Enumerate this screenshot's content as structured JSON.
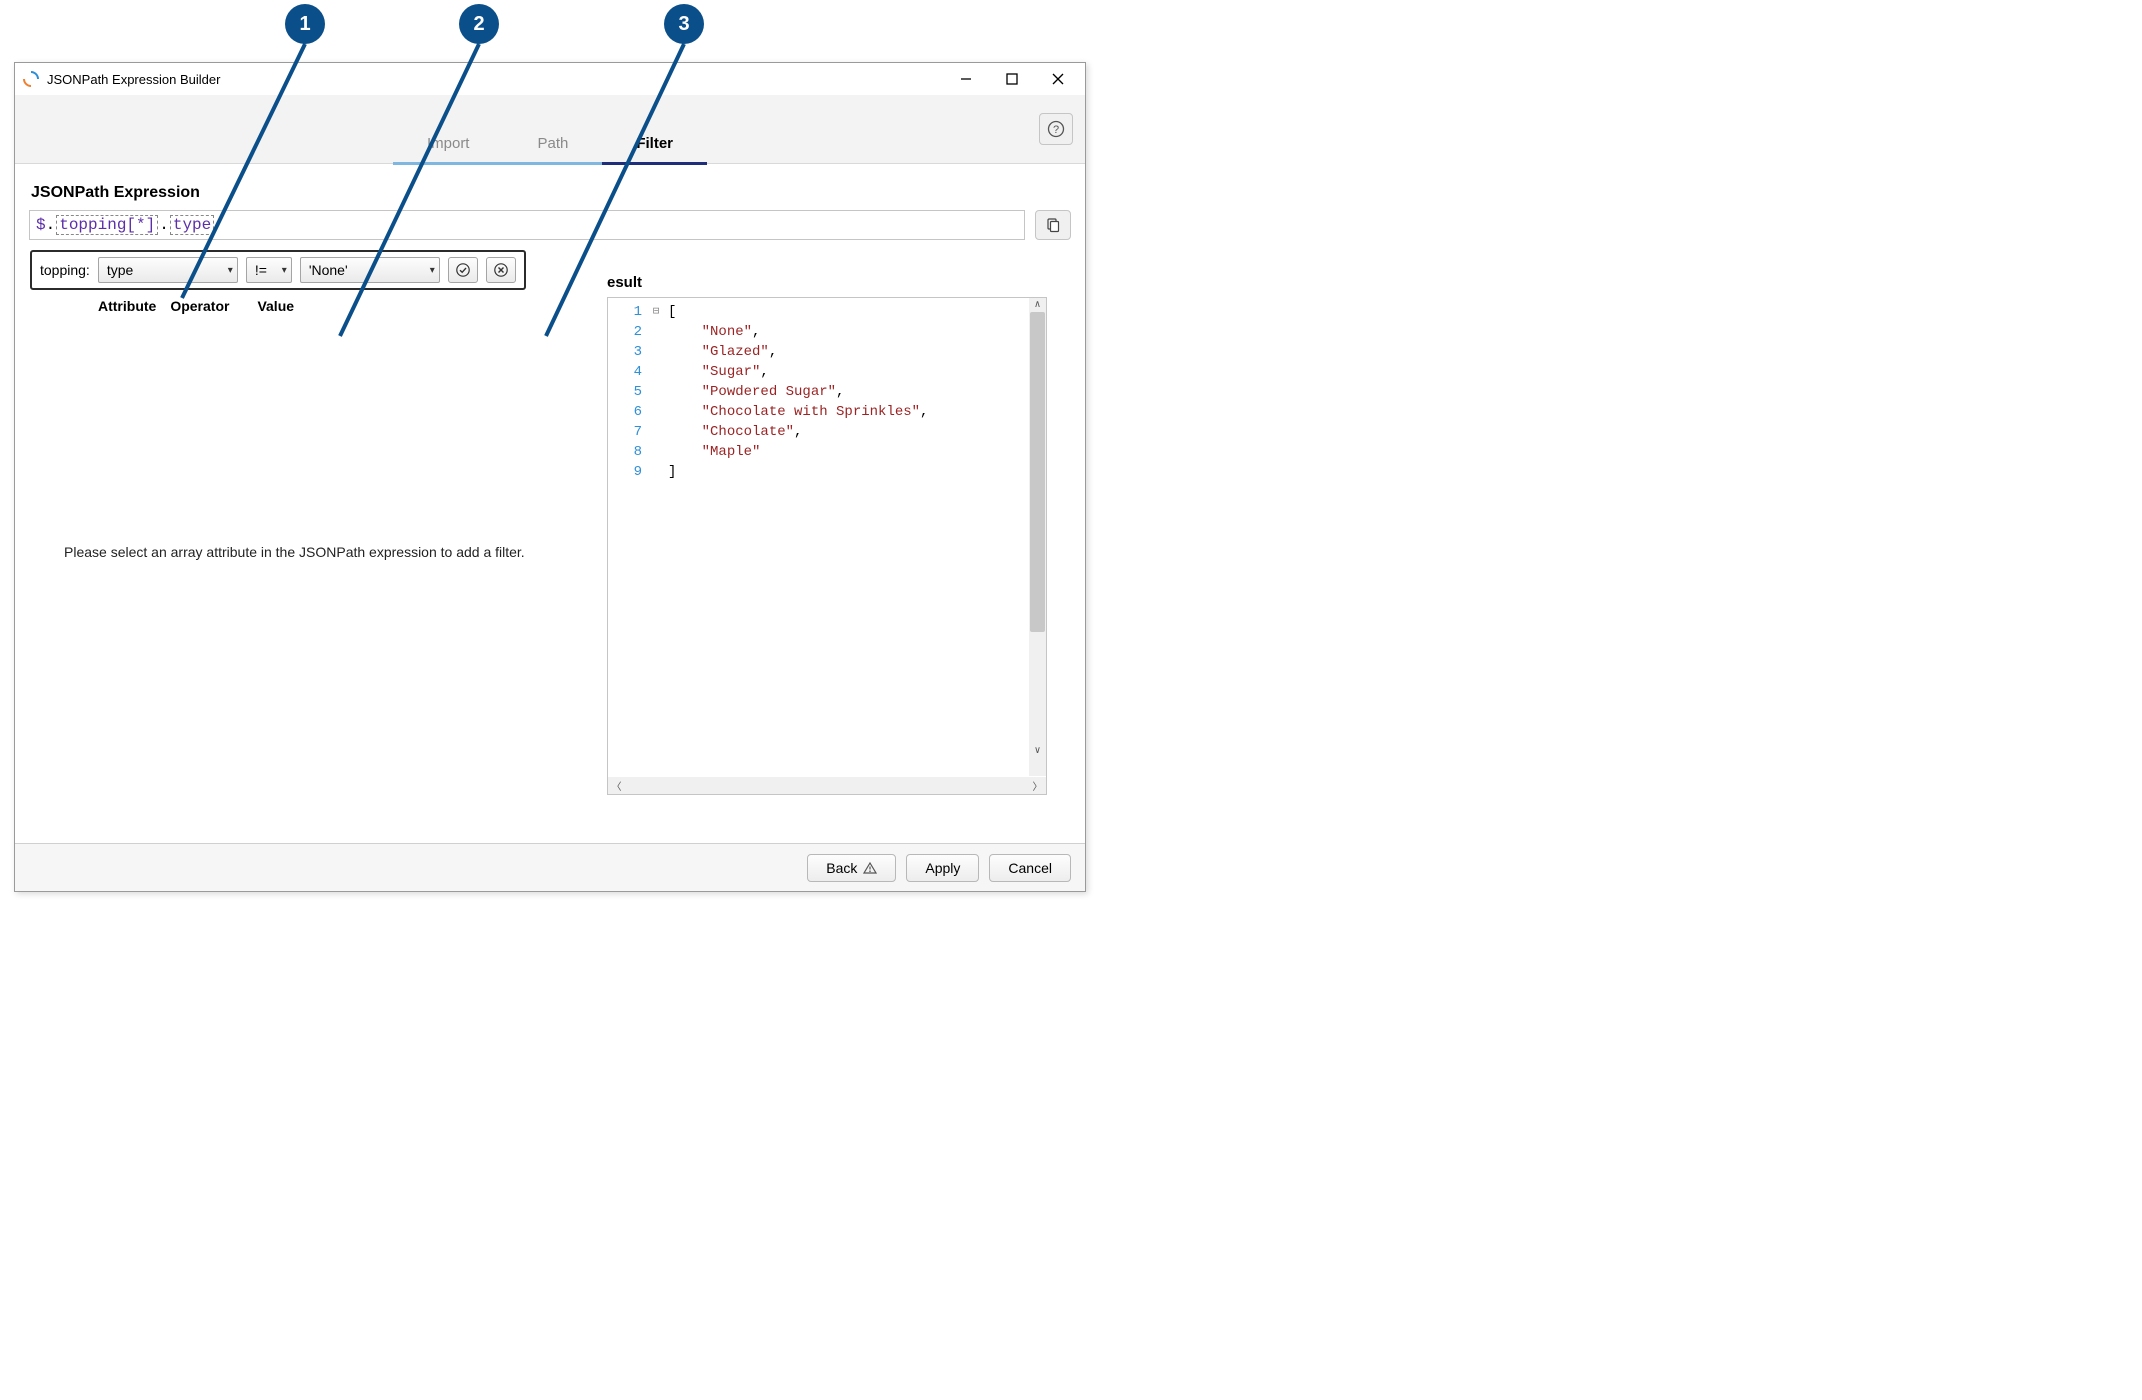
{
  "callouts": {
    "c1": "1",
    "c2": "2",
    "c3": "3"
  },
  "window": {
    "title": "JSONPath Expression Builder",
    "tabs": {
      "import": "Import",
      "path": "Path",
      "filter": "Filter"
    }
  },
  "expression": {
    "section_title": "JSONPath Expression",
    "tok_dollar": "$",
    "tok_dot": ".",
    "tok_topping": "topping[*]",
    "tok_type": "type"
  },
  "filter_popover": {
    "label": "topping:",
    "attribute": "type",
    "operator": "!=",
    "value": "'None'"
  },
  "col_headers": {
    "attribute": "Attribute",
    "operator": "Operator",
    "value": "Value"
  },
  "hint": "Please select an array attribute in the JSONPath expression to add a filter.",
  "result": {
    "label": "esult",
    "json_lines": [
      {
        "n": "1",
        "text": "[",
        "cls": "brkt",
        "fold": "⊟"
      },
      {
        "n": "2",
        "text": "    \"None\",",
        "cls": "str",
        "fold": ""
      },
      {
        "n": "3",
        "text": "    \"Glazed\",",
        "cls": "str",
        "fold": ""
      },
      {
        "n": "4",
        "text": "    \"Sugar\",",
        "cls": "str",
        "fold": ""
      },
      {
        "n": "5",
        "text": "    \"Powdered Sugar\",",
        "cls": "str",
        "fold": ""
      },
      {
        "n": "6",
        "text": "    \"Chocolate with Sprinkles\",",
        "cls": "str",
        "fold": ""
      },
      {
        "n": "7",
        "text": "    \"Chocolate\",",
        "cls": "str",
        "fold": ""
      },
      {
        "n": "8",
        "text": "    \"Maple\"",
        "cls": "str",
        "fold": ""
      },
      {
        "n": "9",
        "text": "]",
        "cls": "brkt",
        "fold": ""
      }
    ]
  },
  "footer": {
    "back": "Back",
    "apply": "Apply",
    "cancel": "Cancel"
  },
  "colors": {
    "callout_bg": "#0b4f8a",
    "active_tab_underline": "#1f2e7a",
    "inactive_tab_underline": "#7fb7e0",
    "line_number": "#2f8fd8",
    "string_color": "#9b2323",
    "keyword_color": "#5c2fa8"
  }
}
